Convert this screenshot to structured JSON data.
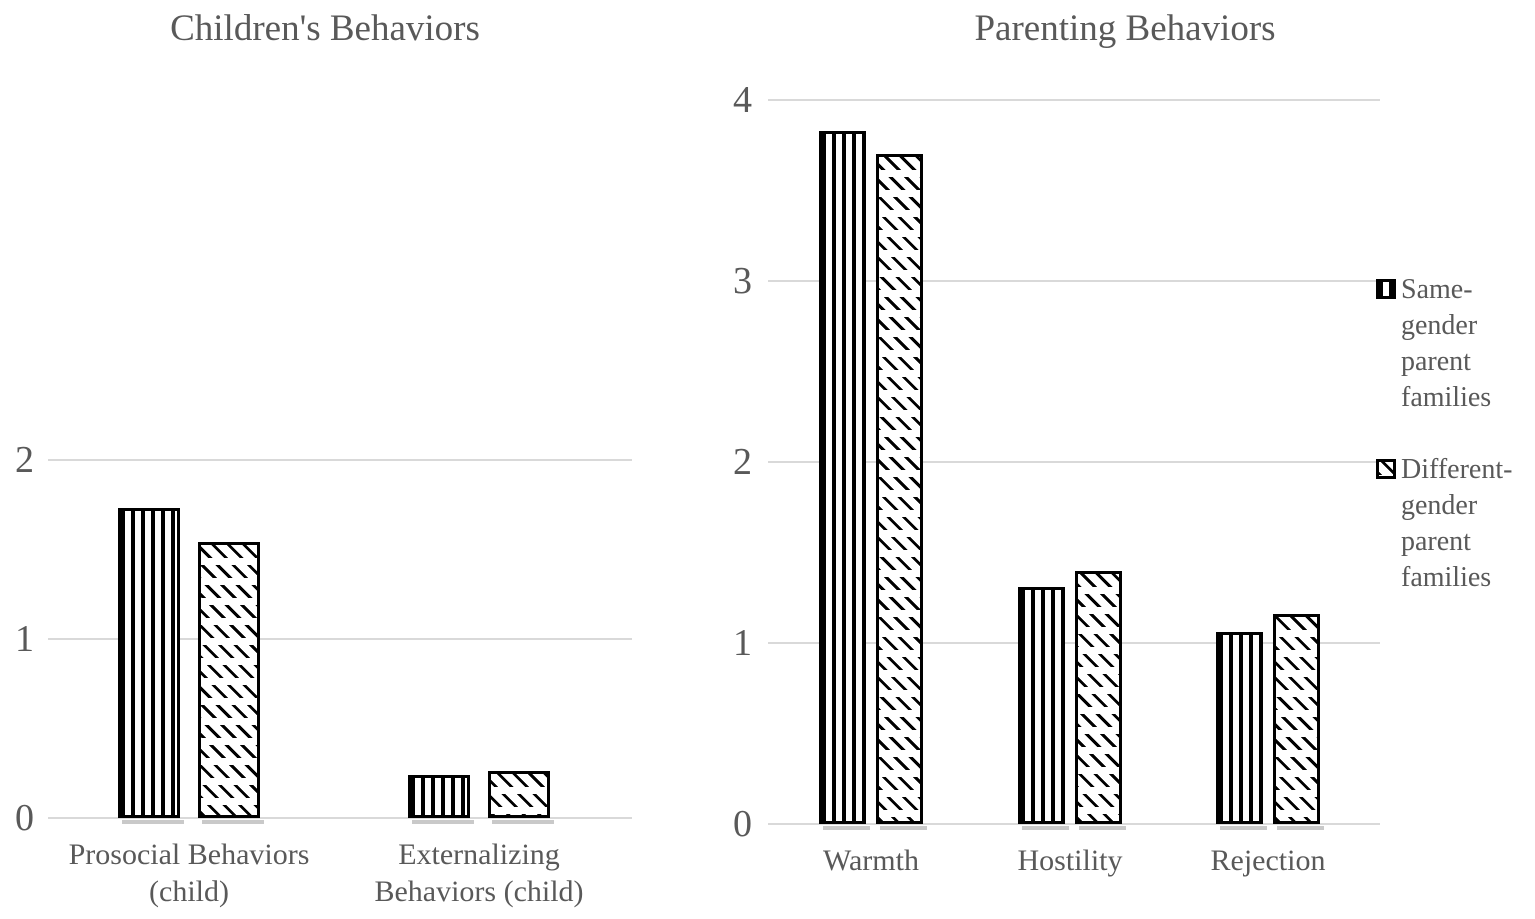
{
  "figure": {
    "background": "#ffffff"
  },
  "colors": {
    "text": "#595959",
    "gridline": "#d9d9d9",
    "bar_outline": "#000000",
    "bar_fill": "#ffffff",
    "bar_shadow": "#c9c9c9"
  },
  "legend": {
    "position": "right",
    "items": [
      {
        "label": "Same-gender parent families",
        "lines": [
          "Same-",
          "gender",
          "parent",
          "families"
        ],
        "pattern": "vertical-stripes"
      },
      {
        "label": "Different-gender parent families",
        "lines": [
          "Different-",
          "gender",
          "parent",
          "families"
        ],
        "pattern": "diagonal-dashes"
      }
    ]
  },
  "chart_data": [
    {
      "type": "bar",
      "title": "Children's Behaviors",
      "categories": [
        "Prosocial Behaviors (child)",
        "Externalizing Behaviors (child)"
      ],
      "category_lines": [
        [
          "Prosocial Behaviors",
          "(child)"
        ],
        [
          "Externalizing",
          "Behaviors (child)"
        ]
      ],
      "series": [
        {
          "name": "Same-gender parent families",
          "pattern": "vertical-stripes",
          "values": [
            1.73,
            0.24
          ]
        },
        {
          "name": "Different-gender parent families",
          "pattern": "diagonal-dashes",
          "values": [
            1.54,
            0.26
          ]
        }
      ],
      "ylabel": "",
      "xlabel": "",
      "yticks": [
        0,
        1,
        2
      ],
      "ylim": [
        0,
        2
      ],
      "grid": "horizontal",
      "bar_fill": "white-with-black-hatch"
    },
    {
      "type": "bar",
      "title": "Parenting Behaviors",
      "categories": [
        "Warmth",
        "Hostility",
        "Rejection"
      ],
      "category_lines": [
        [
          "Warmth"
        ],
        [
          "Hostility"
        ],
        [
          "Rejection"
        ]
      ],
      "series": [
        {
          "name": "Same-gender parent families",
          "pattern": "vertical-stripes",
          "values": [
            3.83,
            1.31,
            1.06
          ]
        },
        {
          "name": "Different-gender parent families",
          "pattern": "diagonal-dashes",
          "values": [
            3.7,
            1.4,
            1.16
          ]
        }
      ],
      "ylabel": "",
      "xlabel": "",
      "yticks": [
        0,
        1,
        2,
        3,
        4
      ],
      "ylim": [
        0,
        4
      ],
      "grid": "horizontal",
      "bar_fill": "white-with-black-hatch"
    }
  ]
}
